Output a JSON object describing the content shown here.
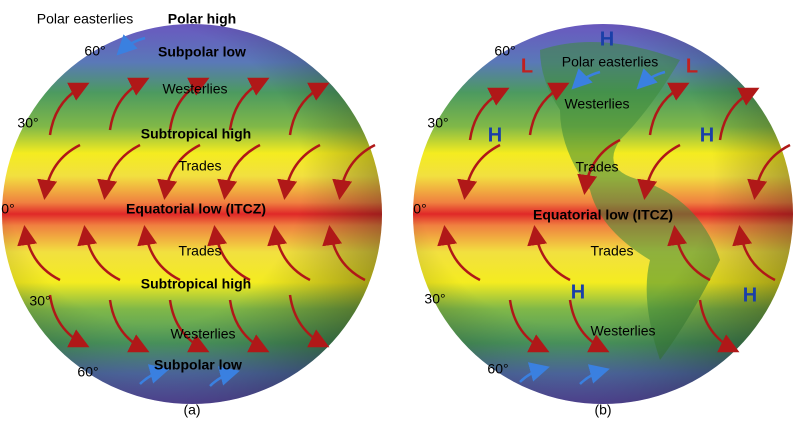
{
  "panels": [
    {
      "caption": "(a)",
      "labels": [
        "Polar easterlies",
        "Polar high",
        "60°",
        "Subpolar low",
        "Westerlies",
        "30°",
        "Subtropical high",
        "Trades",
        "0°",
        "Equatorial low (ITCZ)",
        "Trades",
        "Subtropical high",
        "30°",
        "Westerlies",
        "60°",
        "Subpolar low"
      ]
    },
    {
      "caption": "(b)",
      "labels": [
        "60°",
        "H",
        "L",
        "Polar easterlies",
        "L",
        "Westerlies",
        "30°",
        "H",
        "H",
        "Trades",
        "0°",
        "Equatorial low (ITCZ)",
        "Trades",
        "30°",
        "H",
        "H",
        "Westerlies",
        "60°"
      ]
    }
  ]
}
